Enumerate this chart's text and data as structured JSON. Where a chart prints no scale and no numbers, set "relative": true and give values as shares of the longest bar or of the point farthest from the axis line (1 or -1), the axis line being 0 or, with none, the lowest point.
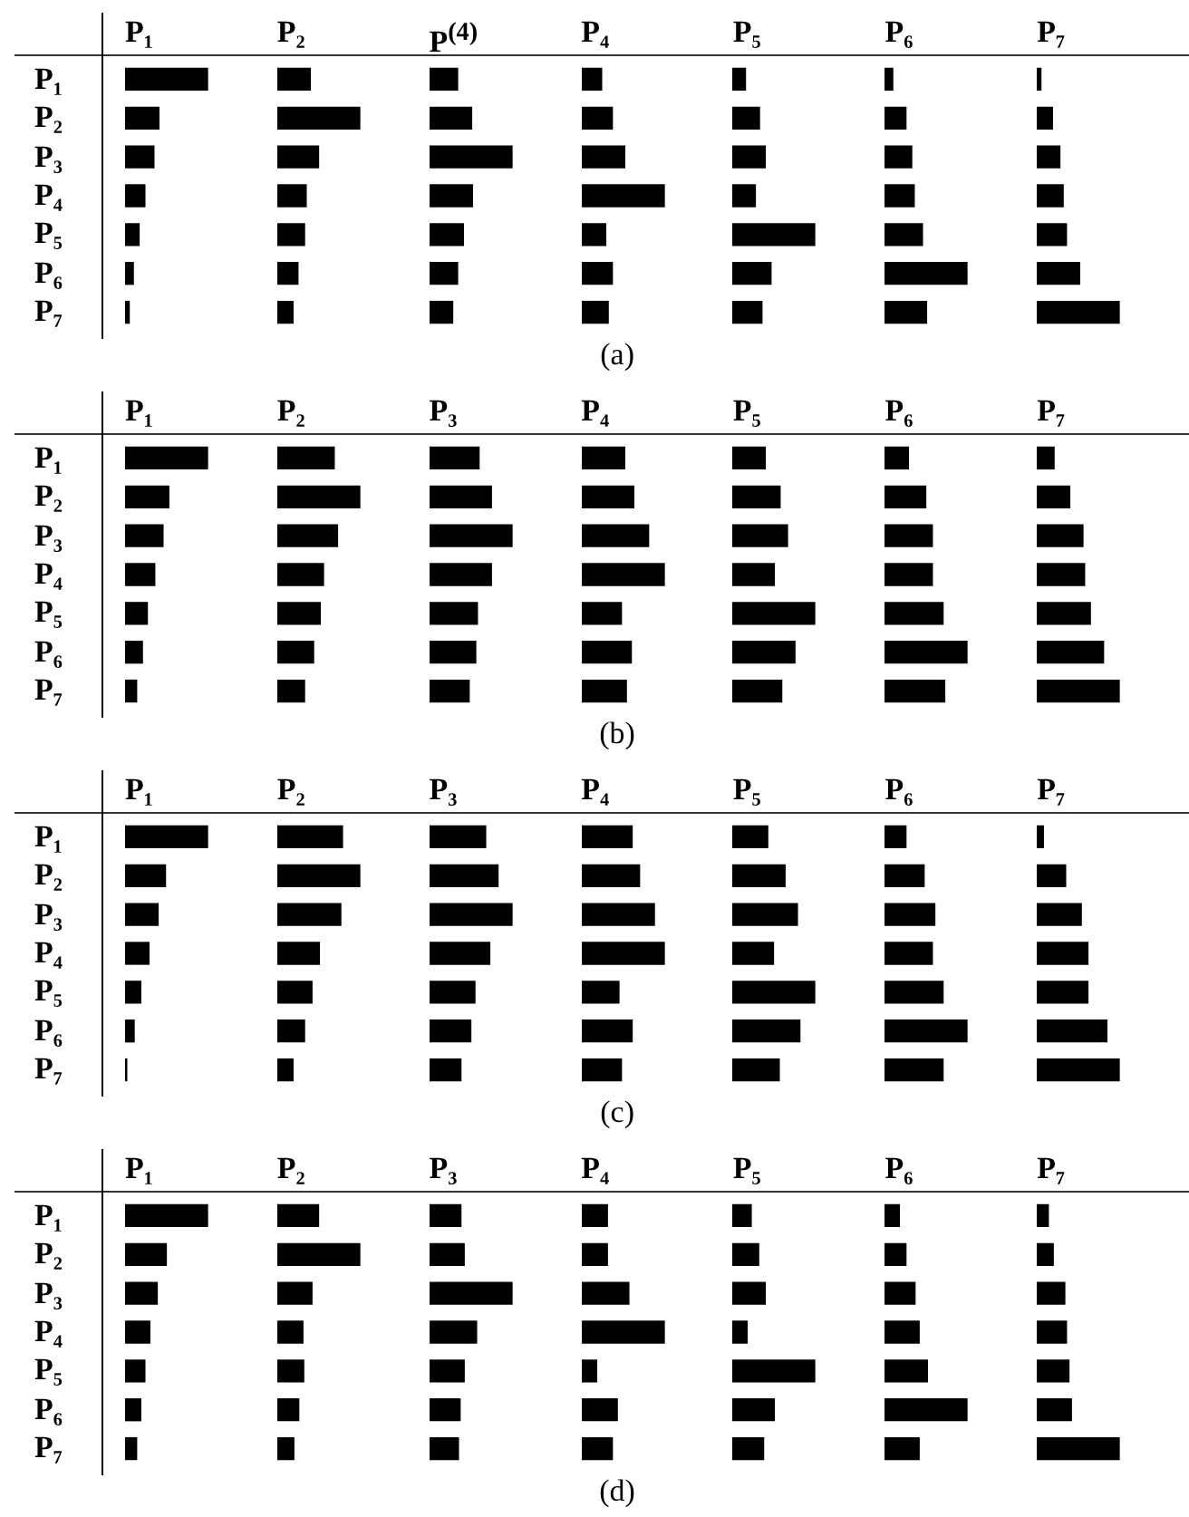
{
  "chart_data": [
    {
      "type": "bar",
      "orientation": "horizontal",
      "relative": true,
      "title": "P₁",
      "categories": [
        "P₁",
        "P₂",
        "P₃",
        "P₄",
        "P₅",
        "P₆",
        "P₇"
      ],
      "color": "#000000",
      "values": [
        1.0,
        0.41,
        0.35,
        0.24,
        0.17,
        0.1,
        0.05
      ]
    },
    {
      "type": "bar",
      "orientation": "horizontal",
      "relative": true,
      "title": "P₂",
      "categories": [
        null,
        null,
        null,
        null,
        null,
        null,
        null
      ],
      "color": "#000000",
      "values": [
        0.4,
        1.0,
        0.5,
        0.35,
        0.33,
        0.25,
        0.19
      ]
    },
    {
      "type": "bar",
      "orientation": "horizontal",
      "relative": true,
      "title": "P$^{(4)}$",
      "categories": [
        null,
        null,
        null,
        null,
        null,
        null,
        null
      ],
      "color": "#000000",
      "values": [
        0.34,
        0.51,
        1.0,
        0.52,
        0.41,
        0.34,
        0.28
      ]
    },
    {
      "type": "bar",
      "orientation": "horizontal",
      "relative": true,
      "title": "P₄",
      "annotations": [
        "(a)"
      ],
      "categories": [
        null,
        null,
        null,
        null,
        null,
        null,
        null
      ],
      "color": "#000000",
      "values": [
        0.24,
        0.37,
        0.52,
        1.0,
        0.29,
        0.37,
        0.32
      ]
    },
    {
      "type": "bar",
      "orientation": "horizontal",
      "relative": true,
      "title": "P₅",
      "categories": [
        null,
        null,
        null,
        null,
        null,
        null,
        null
      ],
      "color": "#000000",
      "values": [
        0.16,
        0.33,
        0.4,
        0.28,
        1.0,
        0.47,
        0.36
      ]
    },
    {
      "type": "bar",
      "orientation": "horizontal",
      "relative": true,
      "title": "P₆",
      "categories": [
        null,
        null,
        null,
        null,
        null,
        null,
        null
      ],
      "color": "#000000",
      "values": [
        0.1,
        0.26,
        0.33,
        0.36,
        0.46,
        1.0,
        0.51
      ]
    },
    {
      "type": "bar",
      "orientation": "horizontal",
      "relative": true,
      "title": "P₇",
      "categories": [
        null,
        null,
        null,
        null,
        null,
        null,
        null
      ],
      "color": "#000000",
      "values": [
        0.05,
        0.19,
        0.28,
        0.32,
        0.36,
        0.52,
        1.0
      ]
    },
    {
      "type": "bar",
      "orientation": "horizontal",
      "relative": true,
      "title": "P₁",
      "categories": [
        "P₁",
        "P₂",
        "P₃",
        "P₄",
        "P₅",
        "P₆",
        "P₇"
      ],
      "color": "#000000",
      "values": [
        1.0,
        0.53,
        0.46,
        0.36,
        0.27,
        0.21,
        0.14
      ]
    },
    {
      "type": "bar",
      "orientation": "horizontal",
      "relative": true,
      "title": "P₂",
      "categories": [
        null,
        null,
        null,
        null,
        null,
        null,
        null
      ],
      "color": "#000000",
      "values": [
        0.69,
        1.0,
        0.73,
        0.56,
        0.52,
        0.44,
        0.33
      ]
    },
    {
      "type": "bar",
      "orientation": "horizontal",
      "relative": true,
      "title": "P₃",
      "categories": [
        null,
        null,
        null,
        null,
        null,
        null,
        null
      ],
      "color": "#000000",
      "values": [
        0.6,
        0.75,
        1.0,
        0.75,
        0.58,
        0.56,
        0.48
      ]
    },
    {
      "type": "bar",
      "orientation": "horizontal",
      "relative": true,
      "title": "P₄",
      "annotations": [
        "(b)"
      ],
      "categories": [
        null,
        null,
        null,
        null,
        null,
        null,
        null
      ],
      "color": "#000000",
      "values": [
        0.52,
        0.63,
        0.81,
        1.0,
        0.48,
        0.6,
        0.54
      ]
    },
    {
      "type": "bar",
      "orientation": "horizontal",
      "relative": true,
      "title": "P₅",
      "categories": [
        null,
        null,
        null,
        null,
        null,
        null,
        null
      ],
      "color": "#000000",
      "values": [
        0.4,
        0.58,
        0.67,
        0.51,
        1.0,
        0.76,
        0.6
      ]
    },
    {
      "type": "bar",
      "orientation": "horizontal",
      "relative": true,
      "title": "P₆",
      "categories": [
        null,
        null,
        null,
        null,
        null,
        null,
        null
      ],
      "color": "#000000",
      "values": [
        0.29,
        0.5,
        0.58,
        0.58,
        0.71,
        1.0,
        0.73
      ]
    },
    {
      "type": "bar",
      "orientation": "horizontal",
      "relative": true,
      "title": "P₇",
      "categories": [
        null,
        null,
        null,
        null,
        null,
        null,
        null
      ],
      "color": "#000000",
      "values": [
        0.21,
        0.4,
        0.56,
        0.58,
        0.65,
        0.81,
        1.0
      ]
    },
    {
      "type": "bar",
      "orientation": "horizontal",
      "relative": true,
      "title": "P₁",
      "categories": [
        "P₁",
        "P₂",
        "P₃",
        "P₄",
        "P₅",
        "P₆",
        "P₇"
      ],
      "color": "#000000",
      "values": [
        1.0,
        0.49,
        0.4,
        0.29,
        0.19,
        0.11,
        0.02
      ]
    },
    {
      "type": "bar",
      "orientation": "horizontal",
      "relative": true,
      "title": "P₂",
      "categories": [
        null,
        null,
        null,
        null,
        null,
        null,
        null
      ],
      "color": "#000000",
      "values": [
        0.79,
        1.0,
        0.77,
        0.51,
        0.42,
        0.33,
        0.19
      ]
    },
    {
      "type": "bar",
      "orientation": "horizontal",
      "relative": true,
      "title": "P₃",
      "categories": [
        null,
        null,
        null,
        null,
        null,
        null,
        null
      ],
      "color": "#000000",
      "values": [
        0.68,
        0.83,
        1.0,
        0.73,
        0.55,
        0.5,
        0.38
      ]
    },
    {
      "type": "bar",
      "orientation": "horizontal",
      "relative": true,
      "title": "P₄",
      "annotations": [
        "(c)"
      ],
      "categories": [
        null,
        null,
        null,
        null,
        null,
        null,
        null
      ],
      "color": "#000000",
      "values": [
        0.61,
        0.7,
        0.88,
        1.0,
        0.45,
        0.61,
        0.48
      ]
    },
    {
      "type": "bar",
      "orientation": "horizontal",
      "relative": true,
      "title": "P₅",
      "categories": [
        null,
        null,
        null,
        null,
        null,
        null,
        null
      ],
      "color": "#000000",
      "values": [
        0.43,
        0.64,
        0.79,
        0.5,
        1.0,
        0.82,
        0.57
      ]
    },
    {
      "type": "bar",
      "orientation": "horizontal",
      "relative": true,
      "title": "P₆",
      "categories": [
        null,
        null,
        null,
        null,
        null,
        null,
        null
      ],
      "color": "#000000",
      "values": [
        0.26,
        0.48,
        0.61,
        0.58,
        0.71,
        1.0,
        0.71
      ]
    },
    {
      "type": "bar",
      "orientation": "horizontal",
      "relative": true,
      "title": "P₇",
      "categories": [
        null,
        null,
        null,
        null,
        null,
        null,
        null
      ],
      "color": "#000000",
      "values": [
        0.08,
        0.35,
        0.54,
        0.62,
        0.62,
        0.85,
        1.0
      ]
    },
    {
      "type": "bar",
      "orientation": "horizontal",
      "relative": true,
      "title": "P₁",
      "categories": [
        "P₁",
        "P₂",
        "P₃",
        "P₄",
        "P₅",
        "P₆",
        "P₇"
      ],
      "color": "#000000",
      "values": [
        1.0,
        0.5,
        0.39,
        0.3,
        0.24,
        0.19,
        0.14
      ]
    },
    {
      "type": "bar",
      "orientation": "horizontal",
      "relative": true,
      "title": "P₂",
      "categories": [
        null,
        null,
        null,
        null,
        null,
        null,
        null
      ],
      "color": "#000000",
      "values": [
        0.5,
        1.0,
        0.42,
        0.31,
        0.32,
        0.26,
        0.2
      ]
    },
    {
      "type": "bar",
      "orientation": "horizontal",
      "relative": true,
      "title": "P₃",
      "categories": [
        null,
        null,
        null,
        null,
        null,
        null,
        null
      ],
      "color": "#000000",
      "values": [
        0.38,
        0.42,
        1.0,
        0.57,
        0.42,
        0.37,
        0.35
      ]
    },
    {
      "type": "bar",
      "orientation": "horizontal",
      "relative": true,
      "title": "P₄",
      "annotations": [
        "(d)"
      ],
      "categories": [
        null,
        null,
        null,
        null,
        null,
        null,
        null
      ],
      "color": "#000000",
      "values": [
        0.31,
        0.31,
        0.57,
        1.0,
        0.18,
        0.43,
        0.37
      ]
    },
    {
      "type": "bar",
      "orientation": "horizontal",
      "relative": true,
      "title": "P₅",
      "categories": [
        null,
        null,
        null,
        null,
        null,
        null,
        null
      ],
      "color": "#000000",
      "values": [
        0.23,
        0.32,
        0.4,
        0.18,
        1.0,
        0.51,
        0.38
      ]
    },
    {
      "type": "bar",
      "orientation": "horizontal",
      "relative": true,
      "title": "P₆",
      "categories": [
        null,
        null,
        null,
        null,
        null,
        null,
        null
      ],
      "color": "#000000",
      "values": [
        0.18,
        0.26,
        0.37,
        0.42,
        0.52,
        1.0,
        0.42
      ]
    },
    {
      "type": "bar",
      "orientation": "horizontal",
      "relative": true,
      "title": "P₇",
      "categories": [
        null,
        null,
        null,
        null,
        null,
        null,
        null
      ],
      "color": "#000000",
      "values": [
        0.14,
        0.2,
        0.34,
        0.36,
        0.39,
        0.42,
        1.0
      ]
    }
  ]
}
